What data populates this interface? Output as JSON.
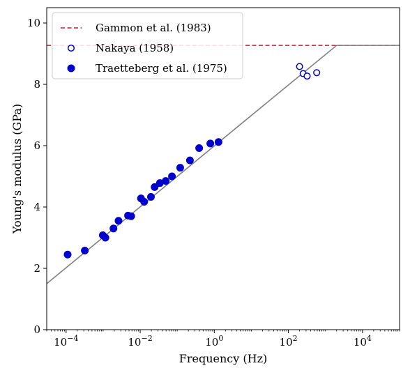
{
  "chart_data": {
    "type": "scatter",
    "xlabel": "Frequency (Hz)",
    "ylabel": "Young's modulus (GPa)",
    "x_scale": "log",
    "xlim": [
      3e-05,
      100000.0
    ],
    "ylim": [
      0,
      10.5
    ],
    "x_ticks": [
      {
        "value": 0.0001,
        "base": "10",
        "exp": "−4"
      },
      {
        "value": 0.01,
        "base": "10",
        "exp": "−2"
      },
      {
        "value": 1,
        "base": "10",
        "exp": "0"
      },
      {
        "value": 100,
        "base": "10",
        "exp": "2"
      },
      {
        "value": 10000,
        "base": "10",
        "exp": "4"
      }
    ],
    "y_ticks": [
      0,
      2,
      4,
      6,
      8,
      10
    ],
    "grid": false,
    "legend_position": "top-left",
    "series": [
      {
        "name": "Gammon et al. (1983)",
        "kind": "hline",
        "y": 9.27,
        "color": "#dc143c",
        "dash": true
      },
      {
        "name": "Nakaya (1958)",
        "kind": "scatter-open",
        "color": "#0000cd",
        "points": [
          {
            "x": 200,
            "y": 8.58
          },
          {
            "x": 250,
            "y": 8.35
          },
          {
            "x": 320,
            "y": 8.27
          },
          {
            "x": 580,
            "y": 8.38
          }
        ]
      },
      {
        "name": "Traetteberg et al. (1975)",
        "kind": "scatter-filled",
        "color": "#0000cd",
        "points": [
          {
            "x": 0.00011,
            "y": 2.45
          },
          {
            "x": 0.00032,
            "y": 2.58
          },
          {
            "x": 0.00098,
            "y": 3.08
          },
          {
            "x": 0.00115,
            "y": 3.0
          },
          {
            "x": 0.0019,
            "y": 3.3
          },
          {
            "x": 0.0026,
            "y": 3.55
          },
          {
            "x": 0.0047,
            "y": 3.72
          },
          {
            "x": 0.0057,
            "y": 3.7
          },
          {
            "x": 0.0105,
            "y": 4.28
          },
          {
            "x": 0.0128,
            "y": 4.17
          },
          {
            "x": 0.0195,
            "y": 4.33
          },
          {
            "x": 0.0245,
            "y": 4.65
          },
          {
            "x": 0.034,
            "y": 4.78
          },
          {
            "x": 0.049,
            "y": 4.85
          },
          {
            "x": 0.072,
            "y": 5.0
          },
          {
            "x": 0.12,
            "y": 5.28
          },
          {
            "x": 0.22,
            "y": 5.52
          },
          {
            "x": 0.39,
            "y": 5.92
          },
          {
            "x": 0.78,
            "y": 6.07
          },
          {
            "x": 1.3,
            "y": 6.12
          }
        ]
      },
      {
        "name": "",
        "kind": "fit-line",
        "color": "#808080",
        "points": [
          {
            "x": 3e-05,
            "y": 1.5
          },
          {
            "x": 2000,
            "y": 9.27
          },
          {
            "x": 100000,
            "y": 9.27
          }
        ]
      }
    ]
  }
}
